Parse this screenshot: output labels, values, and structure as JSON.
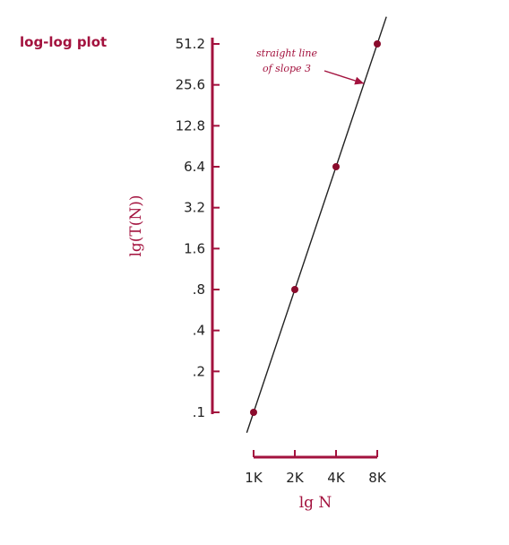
{
  "chart_data": {
    "type": "line",
    "title": "log-log plot",
    "xlabel": "lg N",
    "ylabel": "lg(T(N))",
    "x_scale": "log2",
    "y_scale": "log2",
    "x_ticks": [
      "1K",
      "2K",
      "4K",
      "8K"
    ],
    "y_ticks": [
      "51.2",
      "25.6",
      "12.8",
      "6.4",
      "3.2",
      "1.6",
      ".8",
      ".4",
      ".2",
      ".1"
    ],
    "xlim": [
      1000,
      8000
    ],
    "ylim": [
      0.1,
      51.2
    ],
    "series": [
      {
        "type": "scatter",
        "x": [
          1000,
          2000,
          4000,
          8000
        ],
        "y": [
          0.1,
          0.8,
          6.4,
          51.2
        ]
      },
      {
        "type": "line",
        "x": [
          1000,
          8000
        ],
        "y": [
          0.1,
          51.2
        ]
      }
    ],
    "annotations": [
      {
        "lines": [
          "straight line",
          "of slope 3"
        ],
        "arrow_to_x": 6400,
        "arrow_to_y": 26.2
      }
    ],
    "grid": false,
    "legend": "none"
  },
  "colors": {
    "accent": "#a3123e",
    "point": "#8a0b2c",
    "line": "#222222",
    "text": "#222222",
    "background": "#ffffff"
  }
}
